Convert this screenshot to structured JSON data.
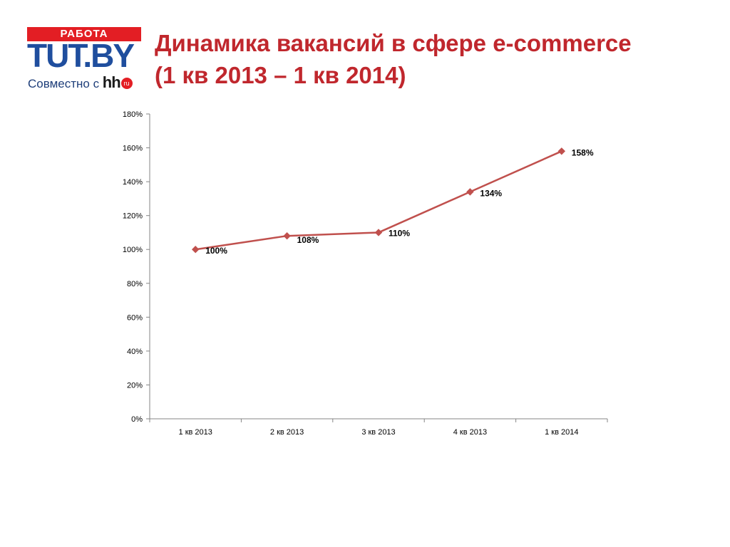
{
  "logo": {
    "banner": "РАБОТА",
    "main": "TUT.BY",
    "sub_prefix": "Совместно с ",
    "hh": "hh",
    "ru": "ru"
  },
  "title": {
    "line1": "Динамика вакансий в сфере e-commerce",
    "line2": "(1 кв 2013 – 1 кв 2014)"
  },
  "chart_data": {
    "type": "line",
    "categories": [
      "1 кв 2013",
      "2 кв 2013",
      "3 кв 2013",
      "4 кв 2013",
      "1 кв 2014"
    ],
    "series": [
      {
        "values": [
          100,
          108,
          110,
          134,
          158
        ],
        "labels": [
          "100%",
          "108%",
          "110%",
          "134%",
          "158%"
        ]
      }
    ],
    "ylim": [
      0,
      180
    ],
    "yticks": [
      0,
      20,
      40,
      60,
      80,
      100,
      120,
      140,
      160,
      180
    ],
    "ytick_labels": [
      "0%",
      "20%",
      "40%",
      "60%",
      "80%",
      "100%",
      "120%",
      "140%",
      "160%",
      "180%"
    ],
    "grid": false,
    "legend": "none",
    "line_color": "#c0504d",
    "marker": "diamond"
  }
}
